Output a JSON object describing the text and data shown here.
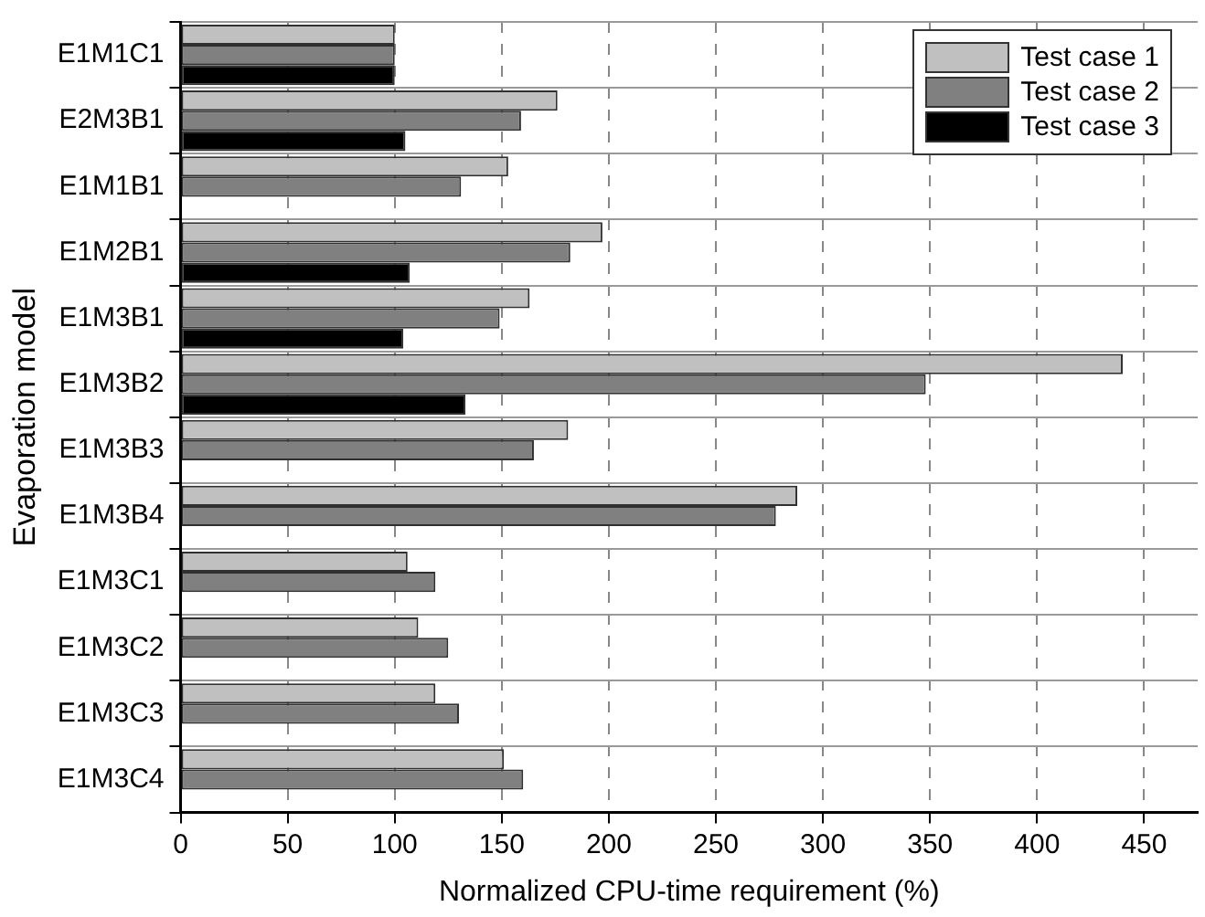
{
  "chart_data": {
    "type": "bar",
    "orientation": "horizontal",
    "xlabel": "Normalized CPU-time requirement (%)",
    "ylabel": "Evaporation model",
    "categories": [
      "E1M1C1",
      "E2M3B1",
      "E1M1B1",
      "E1M2B1",
      "E1M3B1",
      "E1M3B2",
      "E1M3B3",
      "E1M3B4",
      "E1M3C1",
      "E1M3C2",
      "E1M3C3",
      "E1M3C4"
    ],
    "series": [
      {
        "name": "Test case 1",
        "color": "#c0c0c0",
        "values": [
          100,
          176,
          153,
          197,
          163,
          440,
          181,
          288,
          106,
          111,
          119,
          151
        ]
      },
      {
        "name": "Test case 2",
        "color": "#808080",
        "values": [
          100,
          159,
          131,
          182,
          149,
          348,
          165,
          278,
          119,
          125,
          130,
          160
        ]
      },
      {
        "name": "Test case 3",
        "color": "#000000",
        "values": [
          100,
          105,
          null,
          107,
          104,
          133,
          null,
          null,
          null,
          null,
          null,
          null
        ]
      }
    ],
    "xlim": [
      0,
      475
    ],
    "xticks": [
      0,
      50,
      100,
      150,
      200,
      250,
      300,
      350,
      400,
      450
    ],
    "grid": true,
    "legend": "top right"
  }
}
